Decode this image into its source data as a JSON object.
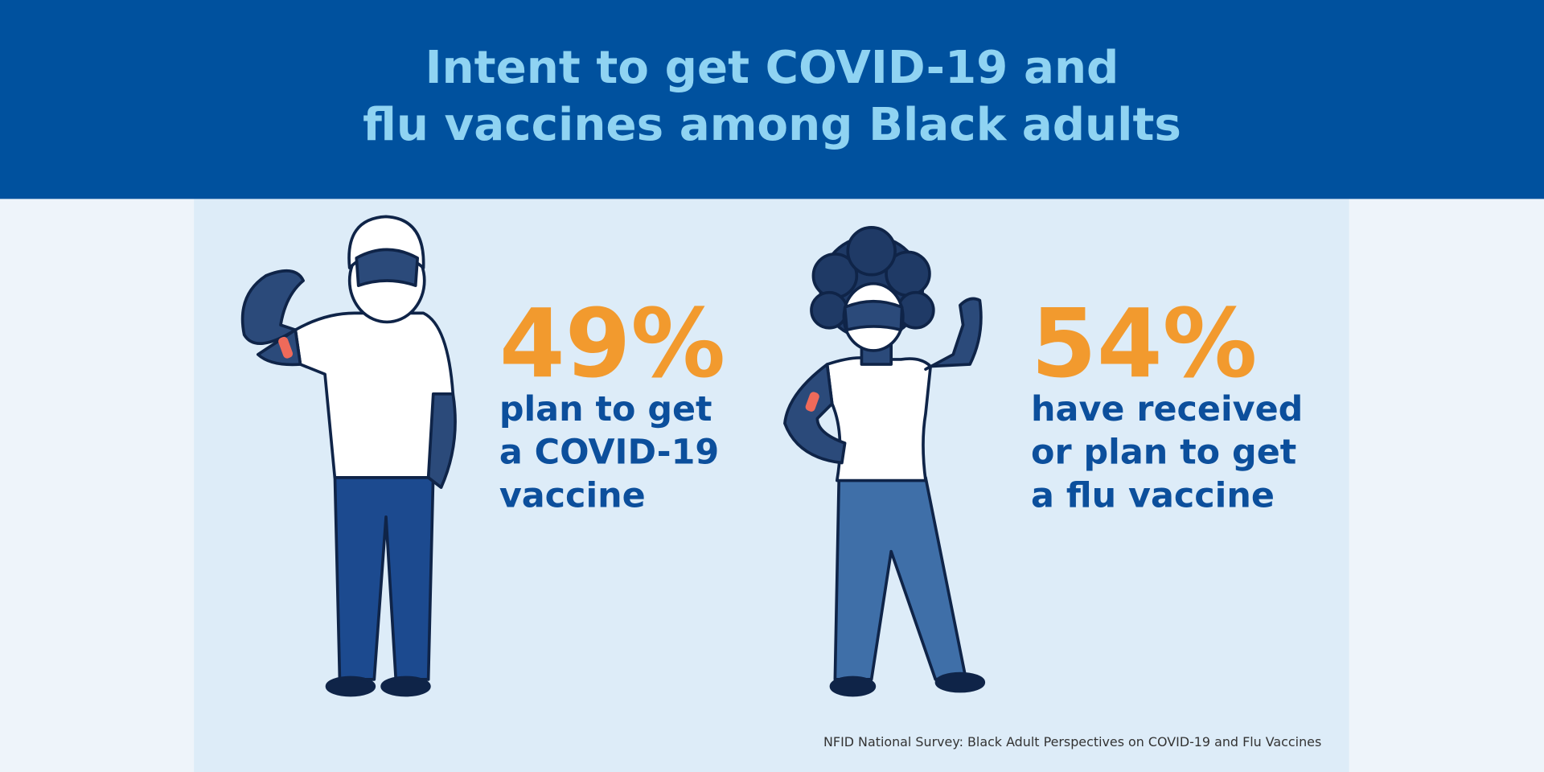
{
  "header": {
    "title_lines": [
      "Intent to get COVID-19 and",
      "flu vaccines among Black adults"
    ]
  },
  "stats": [
    {
      "figure": "49%",
      "lines": [
        "plan to get",
        "a COVID-19",
        "vaccine"
      ]
    },
    {
      "figure": "54%",
      "lines": [
        "have received",
        "or plan to get",
        "a flu vaccine"
      ]
    }
  ],
  "footer": {
    "source": "NFID National Survey: Black Adult Perspectives on COVID-19 and Flu Vaccines"
  }
}
